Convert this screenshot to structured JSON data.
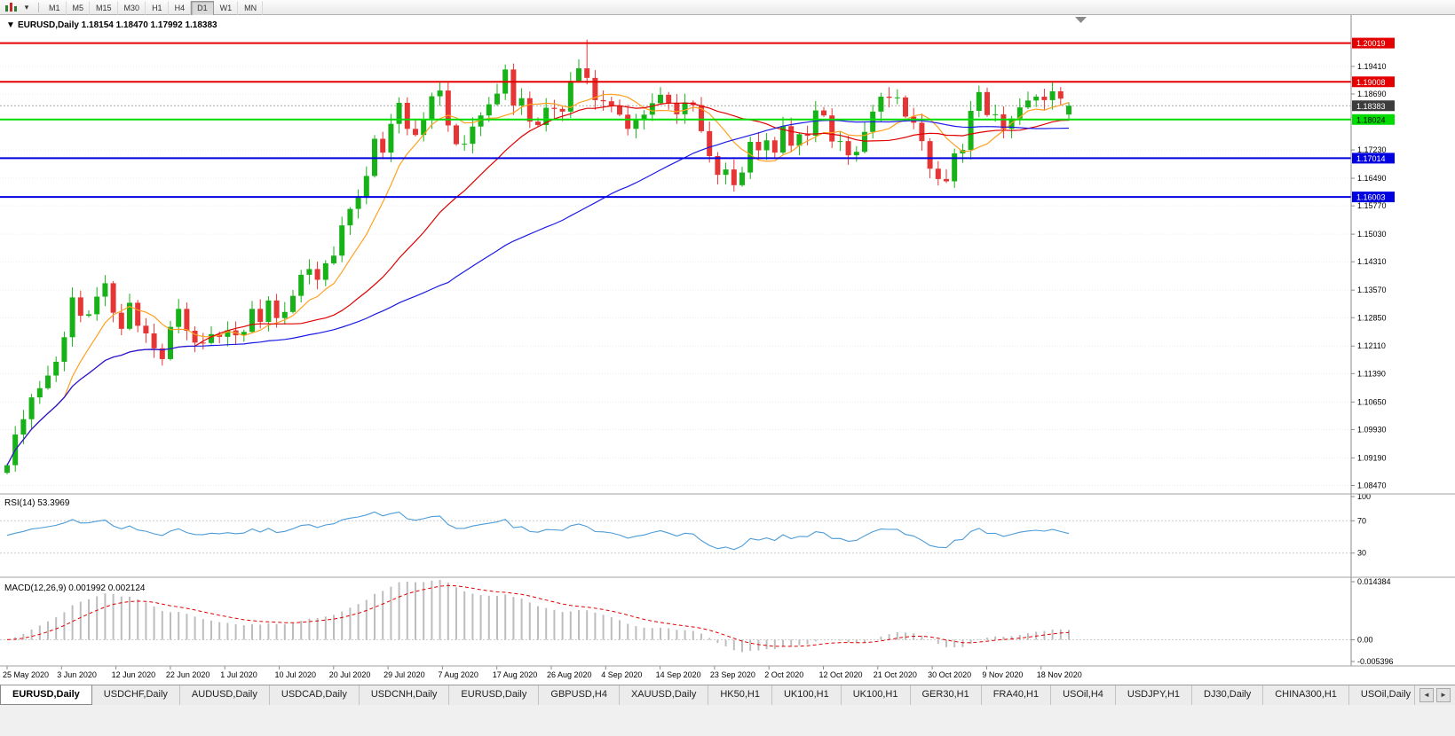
{
  "toolbar": {
    "dropdown_icon": "▾",
    "timeframes": [
      {
        "label": "M1"
      },
      {
        "label": "M5"
      },
      {
        "label": "M15"
      },
      {
        "label": "M30"
      },
      {
        "label": "H1"
      },
      {
        "label": "H4"
      },
      {
        "label": "D1",
        "active": true
      },
      {
        "label": "W1"
      },
      {
        "label": "MN"
      }
    ]
  },
  "chart": {
    "collapse_icon": "▼",
    "main_header": "EURUSD,Daily 1.18154 1.18470 1.17992 1.18383"
  },
  "chart_data": {
    "type": "candlestick",
    "symbol": "EURUSD",
    "period": "Daily",
    "current_bar": {
      "open": 1.18154,
      "high": 1.1847,
      "low": 1.17992,
      "close": 1.18383
    },
    "bid": 1.18383,
    "bid_label": "1.18383",
    "ylim": [
      1.0825,
      1.2075
    ],
    "y_ticks": [
      "1.19410",
      "1.18690",
      "1.17230",
      "1.16490",
      "1.15770",
      "1.15030",
      "1.14310",
      "1.13570",
      "1.12850",
      "1.12110",
      "1.11390",
      "1.10650",
      "1.09930",
      "1.09190",
      "1.08470"
    ],
    "x_labels": [
      "25 May 2020",
      "3 Jun 2020",
      "12 Jun 2020",
      "22 Jun 2020",
      "1 Jul 2020",
      "10 Jul 2020",
      "20 Jul 2020",
      "29 Jul 2020",
      "7 Aug 2020",
      "17 Aug 2020",
      "26 Aug 2020",
      "4 Sep 2020",
      "14 Sep 2020",
      "23 Sep 2020",
      "2 Oct 2020",
      "12 Oct 2020",
      "21 Oct 2020",
      "30 Oct 2020",
      "9 Nov 2020",
      "18 Nov 2020"
    ],
    "closes": [
      1.09,
      1.098,
      1.102,
      1.1077,
      1.1101,
      1.1134,
      1.117,
      1.1234,
      1.1338,
      1.129,
      1.1294,
      1.134,
      1.1375,
      1.1298,
      1.1256,
      1.1324,
      1.1264,
      1.1244,
      1.1205,
      1.1177,
      1.1261,
      1.1308,
      1.1251,
      1.122,
      1.1219,
      1.1242,
      1.1235,
      1.1252,
      1.1239,
      1.1248,
      1.1308,
      1.1274,
      1.133,
      1.1284,
      1.13,
      1.1342,
      1.1397,
      1.1412,
      1.1384,
      1.1427,
      1.1447,
      1.1526,
      1.1569,
      1.1598,
      1.1655,
      1.1752,
      1.1716,
      1.1791,
      1.1846,
      1.1778,
      1.1762,
      1.1803,
      1.1863,
      1.1878,
      1.1787,
      1.1738,
      1.1739,
      1.1784,
      1.1813,
      1.1842,
      1.187,
      1.1933,
      1.1839,
      1.1858,
      1.1797,
      1.1788,
      1.1833,
      1.183,
      1.1823,
      1.1903,
      1.1936,
      1.1911,
      1.1853,
      1.185,
      1.1838,
      1.1815,
      1.1778,
      1.1801,
      1.1815,
      1.1845,
      1.1867,
      1.1845,
      1.1816,
      1.1847,
      1.184,
      1.1772,
      1.1707,
      1.1658,
      1.1672,
      1.1631,
      1.1664,
      1.1744,
      1.1722,
      1.1748,
      1.1716,
      1.1785,
      1.1734,
      1.1764,
      1.176,
      1.1826,
      1.1813,
      1.1745,
      1.1746,
      1.1709,
      1.1718,
      1.177,
      1.1823,
      1.1862,
      1.1859,
      1.186,
      1.181,
      1.1794,
      1.1746,
      1.1674,
      1.1647,
      1.1641,
      1.1714,
      1.1723,
      1.1825,
      1.1874,
      1.1814,
      1.1816,
      1.1778,
      1.1805,
      1.1834,
      1.1852,
      1.1862,
      1.1853,
      1.1876,
      1.1857,
      1.18383
    ],
    "overrides": {
      "71": {
        "h": 1.2011
      },
      "130": {
        "o": 1.18154,
        "h": 1.1847,
        "l": 1.17992
      }
    },
    "levels": [
      {
        "price": 1.20019,
        "label": "1.20019",
        "color": "#E40000",
        "text_color": "#FFFFFF"
      },
      {
        "price": 1.19008,
        "label": "1.19008",
        "color": "#E40000",
        "text_color": "#FFFFFF"
      },
      {
        "price": 1.18024,
        "label": "1.18024",
        "color": "#00DC00",
        "text_color": "#000000"
      },
      {
        "price": 1.17014,
        "label": "1.17014",
        "color": "#0000E0",
        "text_color": "#FFFFFF"
      },
      {
        "price": 1.16003,
        "label": "1.16003",
        "color": "#0000E0",
        "text_color": "#FFFFFF"
      }
    ],
    "moving_averages": [
      {
        "period": 8,
        "color": "#FFA020"
      },
      {
        "period": 24,
        "color": "#E00000"
      },
      {
        "period": 55,
        "color": "#1A1AE6"
      }
    ],
    "rsi": {
      "label": "RSI(14) 53.3969",
      "period": 14,
      "color": "#4C9CD8",
      "range": [
        0,
        100
      ],
      "grid_levels": [
        70,
        30
      ],
      "axis_ticks": [
        {
          "label": "100",
          "value": 100
        },
        {
          "label": "70",
          "value": 70
        },
        {
          "label": "30",
          "value": 30
        }
      ]
    },
    "macd": {
      "label": "MACD(12,26,9) 0.001992 0.002124",
      "fast": 12,
      "slow": 26,
      "signal": 9,
      "range": [
        -0.005396,
        0.014384
      ],
      "histogram_color": "#BDBDBD",
      "signal_color": "#E00000",
      "axis_ticks": [
        {
          "label": "0.014384",
          "value": 0.014384
        },
        {
          "label": "0.00",
          "value": 0
        },
        {
          "label": "-0.005396",
          "value": -0.005396
        }
      ]
    }
  },
  "colors": {
    "candle_up": "#17B217",
    "candle_down": "#E63535",
    "bid_badge": "#3C3C3C",
    "bid_line": "#A8A8A8",
    "grid": "#EBEBEB",
    "panel_border": "#A0A0A0"
  },
  "tabs": {
    "scroll_left": "◄",
    "scroll_right": "►",
    "items": [
      {
        "label": "EURUSD,Daily",
        "active": true
      },
      {
        "label": "USDCHF,Daily"
      },
      {
        "label": "AUDUSD,Daily"
      },
      {
        "label": "USDCAD,Daily"
      },
      {
        "label": "USDCNH,Daily"
      },
      {
        "label": "EURUSD,Daily"
      },
      {
        "label": "GBPUSD,H4"
      },
      {
        "label": "XAUUSD,Daily"
      },
      {
        "label": "HK50,H1"
      },
      {
        "label": "UK100,H1"
      },
      {
        "label": "UK100,H1"
      },
      {
        "label": "GER30,H1"
      },
      {
        "label": "FRA40,H1"
      },
      {
        "label": "USOil,H4"
      },
      {
        "label": "USDJPY,H1"
      },
      {
        "label": "DJ30,Daily"
      },
      {
        "label": "CHINA300,H1"
      },
      {
        "label": "USOil,Daily"
      }
    ]
  }
}
